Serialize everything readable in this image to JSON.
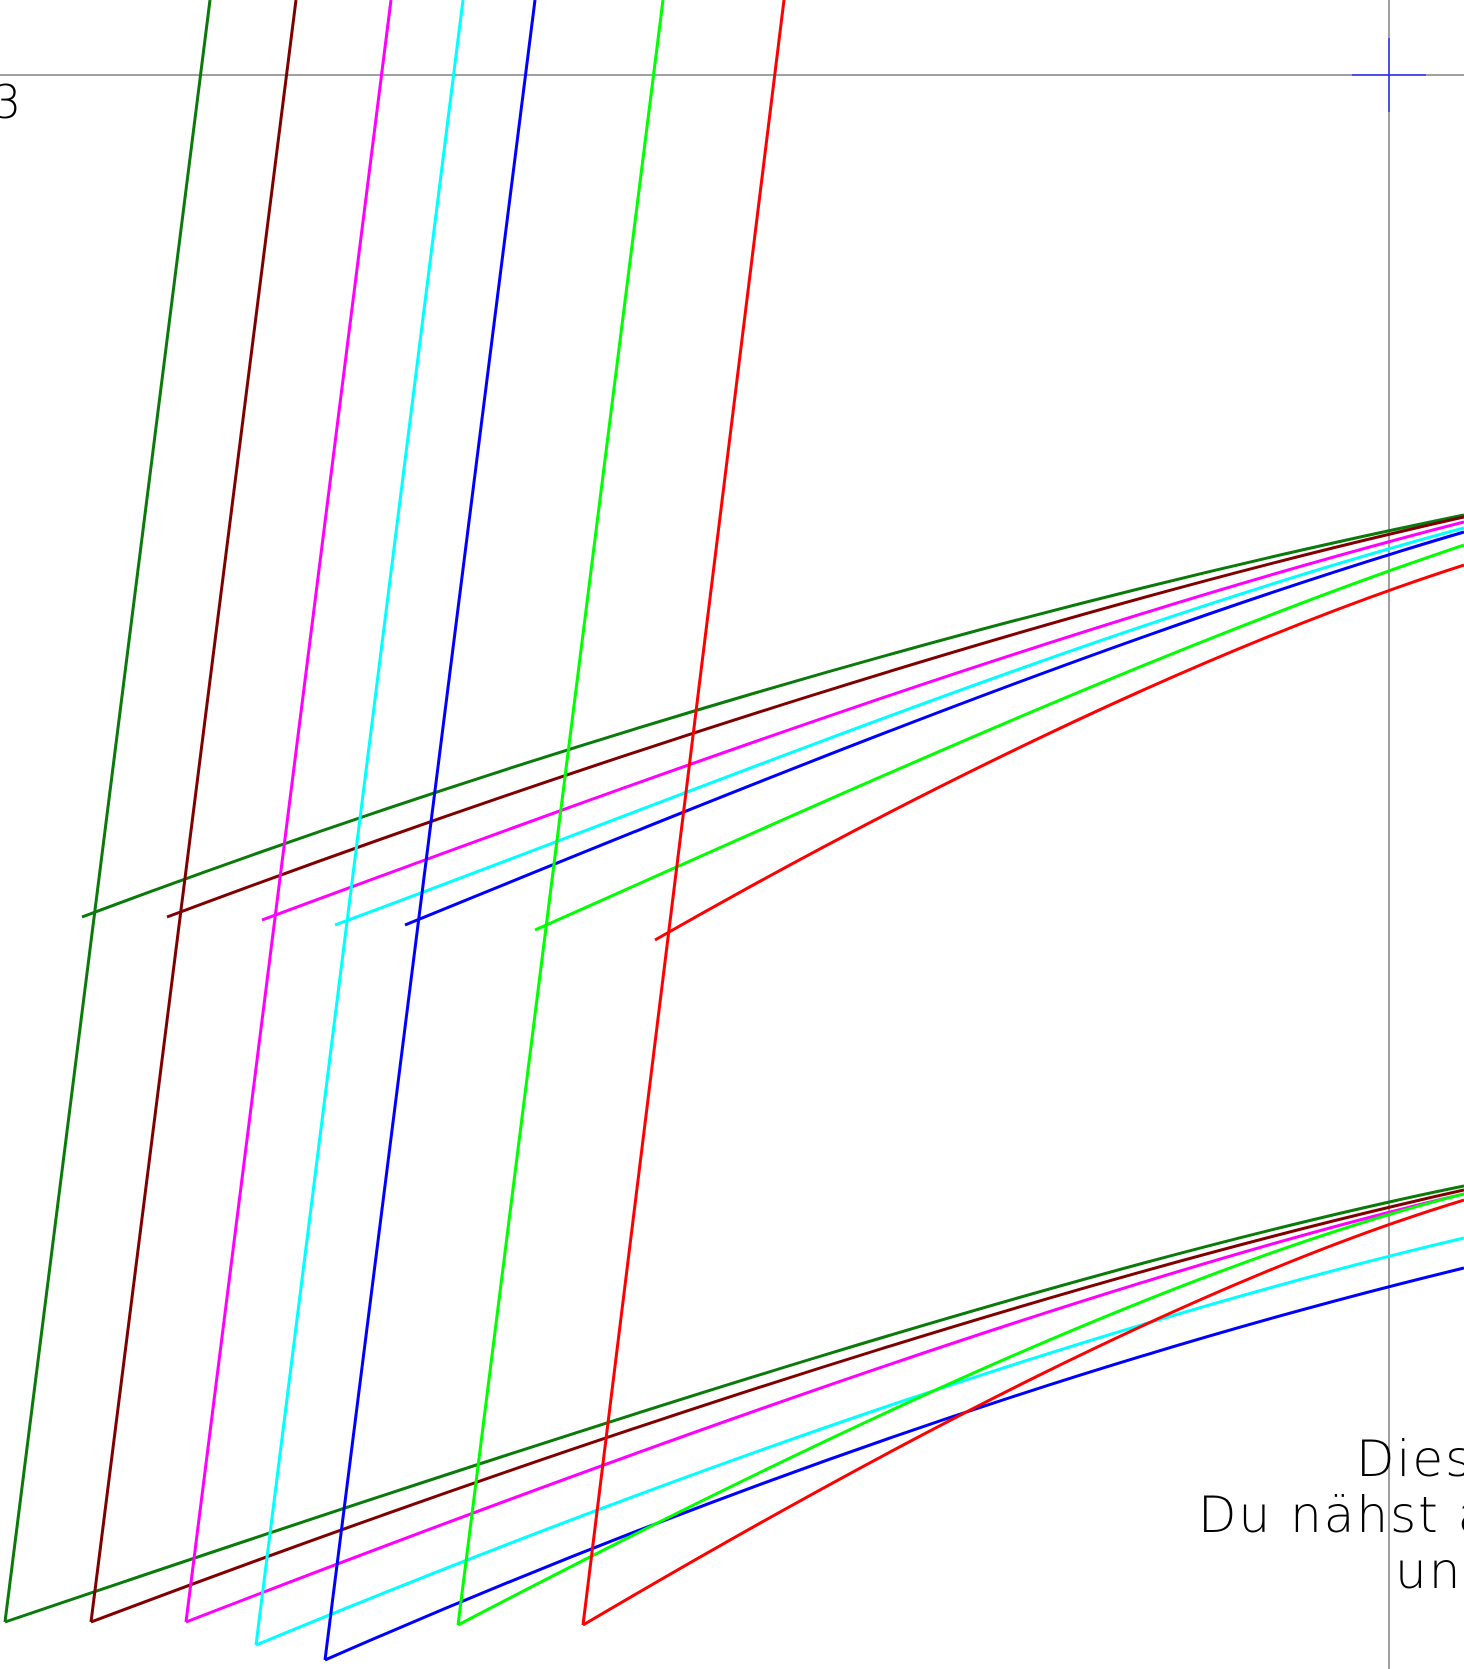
{
  "labels": {
    "corner": "3",
    "note_line1": "Dies",
    "note_line2": "Du nähst a",
    "note_line3": "und"
  },
  "colors": {
    "background": "#ffffff",
    "guide": "#808080",
    "cross": "#2a2aff",
    "text": "#000000",
    "palette": [
      "#0a7a0a",
      "#800000",
      "#ff00ff",
      "#00ffff",
      "#0000ff",
      "#00ff00",
      "#ff0000"
    ]
  },
  "pattern_sizes": [
    {
      "name": "green-dark",
      "color": "#0a7a0a"
    },
    {
      "name": "maroon",
      "color": "#800000"
    },
    {
      "name": "magenta",
      "color": "#ff00ff"
    },
    {
      "name": "cyan",
      "color": "#00ffff"
    },
    {
      "name": "blue",
      "color": "#0000ff"
    },
    {
      "name": "green-light",
      "color": "#00ff00"
    },
    {
      "name": "red",
      "color": "#ff0000"
    }
  ]
}
